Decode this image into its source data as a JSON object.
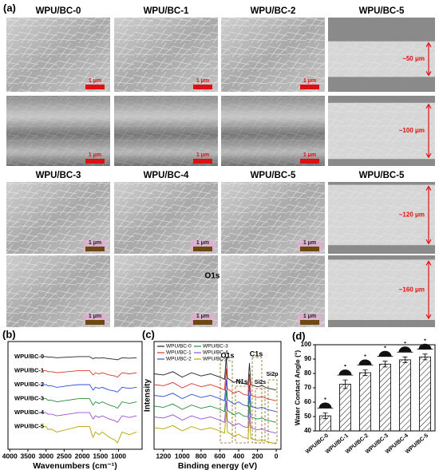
{
  "panel_a": {
    "label": "(a)",
    "title_rows": [
      [
        "WPU/BC-0",
        "WPU/BC-1",
        "WPU/BC-2",
        "WPU/BC-5"
      ],
      [
        "WPU/BC-3",
        "WPU/BC-4",
        "WPU/BC-5",
        "WPU/BC-5"
      ]
    ],
    "scale_bar": "1 μm",
    "thickness_labels": [
      "~50 μm",
      "~100 μm",
      "~120 μm",
      "~160 μm"
    ],
    "overlay_text": "O1s"
  },
  "chart_data": [
    {
      "type": "line",
      "label": "(b)",
      "xlabel": "Wavenumbers (cm⁻¹)",
      "legend": "left",
      "xlim": [
        4050,
        350
      ],
      "xticks": [
        4000,
        3500,
        3000,
        2500,
        2000,
        1500,
        1000
      ],
      "ylim": [
        0,
        100
      ],
      "x": [
        3100,
        3000,
        2950,
        2920,
        2850,
        2700,
        2400,
        2100,
        1800,
        1730,
        1700,
        1640,
        1540,
        1450,
        1250,
        1100,
        1030,
        900,
        700,
        500
      ],
      "series": [
        {
          "name": "WPU/BC-0",
          "color": "#222222",
          "values": [
            86,
            86,
            85.5,
            85.5,
            85.5,
            85,
            85.5,
            86,
            86,
            84.5,
            84,
            85,
            84.5,
            85,
            84,
            83.5,
            83,
            85,
            84.5,
            85
          ]
        },
        {
          "name": "WPU/BC-1",
          "color": "#d9362b",
          "values": [
            73,
            73,
            72,
            72,
            72,
            71,
            72,
            73,
            73,
            70,
            69,
            71,
            70,
            71,
            69,
            68,
            67,
            71,
            70,
            71
          ]
        },
        {
          "name": "WPU/BC-2",
          "color": "#2f4fd8",
          "values": [
            60,
            60,
            59,
            59,
            59,
            57.5,
            59,
            60,
            60,
            56.5,
            55,
            57.5,
            56.5,
            57.5,
            55,
            54,
            53,
            57.5,
            56.5,
            57.5
          ]
        },
        {
          "name": "WPU/BC-3",
          "color": "#2a8a3a",
          "values": [
            47,
            47,
            45.5,
            45.5,
            45.5,
            44,
            45.5,
            47,
            47,
            42.5,
            41,
            44,
            42.5,
            44,
            41,
            39.5,
            38,
            44,
            42.5,
            44
          ]
        },
        {
          "name": "WPU/BC-4",
          "color": "#9b4fd6",
          "values": [
            34,
            34,
            32.5,
            32.5,
            32.5,
            31,
            32.5,
            34,
            34,
            29.5,
            28,
            31,
            29.5,
            31,
            28,
            26.5,
            25,
            31,
            29.5,
            31
          ]
        },
        {
          "name": "WPU/BC-5",
          "color": "#b5a300",
          "values": [
            21,
            21,
            18.5,
            18.5,
            18.5,
            16,
            18.5,
            21,
            21,
            13.5,
            11,
            16,
            13.5,
            16,
            11,
            8.5,
            6,
            16,
            13.5,
            16
          ]
        }
      ]
    },
    {
      "type": "line",
      "label": "(c)",
      "xlabel": "Binding energy (eV)",
      "ylabel": "Intensity",
      "legend": "upper left",
      "xlim": [
        1300,
        -50
      ],
      "xticks": [
        1200,
        1000,
        800,
        600,
        400,
        200,
        0
      ],
      "ylim": [
        0,
        100
      ],
      "annotations": [
        "O1s",
        "C1s",
        "N1s",
        "Si2s",
        "Si2p"
      ],
      "x": [
        1300,
        1200,
        1100,
        1000,
        900,
        800,
        700,
        600,
        550,
        532,
        520,
        450,
        400,
        350,
        300,
        285,
        270,
        200,
        150,
        100,
        50,
        0
      ],
      "series": [
        {
          "name": "WPU/BC-0",
          "color": "#222222",
          "values": [
            70,
            69,
            72,
            67,
            71,
            68,
            70,
            67,
            65,
            85,
            66,
            62,
            64,
            61,
            60,
            80,
            60,
            58,
            59,
            57,
            56,
            55
          ]
        },
        {
          "name": "WPU/BC-1",
          "color": "#d9362b",
          "values": [
            60,
            59,
            62,
            57,
            61,
            58,
            60,
            57,
            55,
            75,
            56,
            52,
            54,
            51,
            50,
            70,
            50,
            48,
            49,
            47,
            46,
            45
          ]
        },
        {
          "name": "WPU/BC-2",
          "color": "#2f4fd8",
          "values": [
            50,
            49,
            52,
            47,
            51,
            48,
            50,
            47,
            45,
            65,
            46,
            42,
            44,
            41,
            40,
            60,
            40,
            38,
            39,
            37,
            36,
            35
          ]
        },
        {
          "name": "WPU/BC-3",
          "color": "#2a8a3a",
          "values": [
            40,
            39,
            42,
            37,
            41,
            38,
            40,
            37,
            35,
            55,
            36,
            32,
            34,
            31,
            30,
            50,
            30,
            28,
            29,
            27,
            26,
            25
          ]
        },
        {
          "name": "WPU/BC-4",
          "color": "#9b4fd6",
          "values": [
            30,
            29,
            32,
            27,
            31,
            28,
            30,
            27,
            25,
            45,
            26,
            22,
            24,
            21,
            20,
            40,
            20,
            18,
            19,
            17,
            16,
            15
          ]
        },
        {
          "name": "WPU/BC-5",
          "color": "#b5a300",
          "values": [
            20,
            19,
            22,
            17,
            21,
            18,
            20,
            17,
            15,
            35,
            16,
            12,
            14,
            11,
            10,
            30,
            10,
            8,
            9,
            7,
            6,
            5
          ]
        }
      ]
    },
    {
      "type": "bar",
      "label": "(d)",
      "ylabel": "Water Contact Angle (°)",
      "categories": [
        "WPU/BC-0",
        "WPU/BC-1",
        "WPU/BC-2",
        "WPU/BC-3",
        "WPU/BC-4",
        "WPU/BC-5"
      ],
      "values": [
        50.5,
        72.5,
        80.5,
        86.5,
        89.5,
        91.5
      ],
      "errors": [
        2,
        3,
        2,
        2,
        2,
        2
      ],
      "ylim": [
        40,
        100
      ],
      "yticks": [
        40,
        50,
        60,
        70,
        80,
        90,
        100
      ],
      "color": "#ffffff"
    }
  ]
}
